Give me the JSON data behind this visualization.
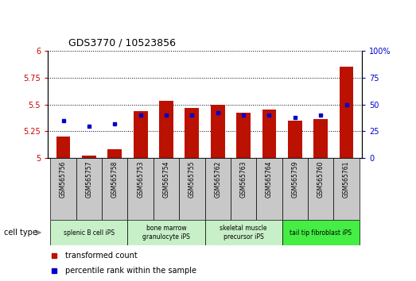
{
  "title": "GDS3770 / 10523856",
  "samples": [
    "GSM565756",
    "GSM565757",
    "GSM565758",
    "GSM565753",
    "GSM565754",
    "GSM565755",
    "GSM565762",
    "GSM565763",
    "GSM565764",
    "GSM565759",
    "GSM565760",
    "GSM565761"
  ],
  "transformed_counts": [
    5.2,
    5.02,
    5.08,
    5.44,
    5.53,
    5.47,
    5.5,
    5.42,
    5.45,
    5.35,
    5.36,
    5.85
  ],
  "percentile_ranks": [
    35,
    30,
    32,
    40,
    40,
    40,
    42,
    40,
    40,
    38,
    40,
    50
  ],
  "ylim_left": [
    5.0,
    6.0
  ],
  "ylim_right": [
    0,
    100
  ],
  "yticks_left": [
    5.0,
    5.25,
    5.5,
    5.75,
    6.0
  ],
  "ytick_labels_left": [
    "5",
    "5.25",
    "5.5",
    "5.75",
    "6"
  ],
  "yticks_right": [
    0,
    25,
    50,
    75,
    100
  ],
  "ytick_labels_right": [
    "0",
    "25",
    "50",
    "75",
    "100%"
  ],
  "bar_color": "#bb1100",
  "dot_color": "#0000cc",
  "cell_types": [
    {
      "label": "splenic B cell iPS",
      "start": 0,
      "end": 3,
      "color": "#c8f0c8"
    },
    {
      "label": "bone marrow\ngranulocyte iPS",
      "start": 3,
      "end": 6,
      "color": "#c8f0c8"
    },
    {
      "label": "skeletal muscle\nprecursor iPS",
      "start": 6,
      "end": 9,
      "color": "#c8f0c8"
    },
    {
      "label": "tail tip fibroblast iPS",
      "start": 9,
      "end": 12,
      "color": "#44ee44"
    }
  ],
  "legend_bar_label": "transformed count",
  "legend_dot_label": "percentile rank within the sample",
  "ylabel_left_color": "#cc0000",
  "ylabel_right_color": "#0000cc",
  "bar_width": 0.55,
  "sample_box_color": "#c8c8c8",
  "sample_box_edge": "#000000"
}
